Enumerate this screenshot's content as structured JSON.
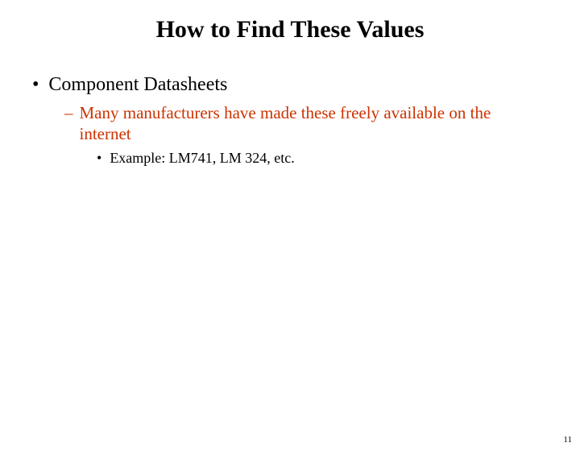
{
  "slide": {
    "title": "How to Find These Values",
    "page_number": "11",
    "colors": {
      "background": "#ffffff",
      "title_text": "#000000",
      "l1_text": "#000000",
      "l2_text": "#cc3300",
      "l3_text": "#000000"
    },
    "typography": {
      "font_family": "Times New Roman",
      "title_fontsize": 30,
      "title_fontweight": "bold",
      "l1_fontsize": 24,
      "l2_fontsize": 21,
      "l3_fontsize": 18
    },
    "bullets": {
      "l1_marker": "•",
      "l1_text": "Component Datasheets",
      "l2_marker": "–",
      "l2_text": "Many manufacturers have made these freely available on the internet",
      "l3_marker": "•",
      "l3_text": "Example:  LM741, LM 324, etc."
    }
  }
}
